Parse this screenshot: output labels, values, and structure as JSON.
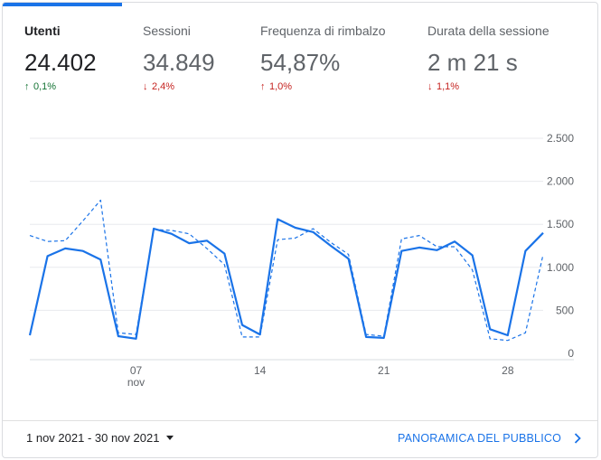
{
  "metrics": [
    {
      "label": "Utenti",
      "value": "24.402",
      "delta": "0,1%",
      "direction": "up",
      "tone": "good",
      "active": true
    },
    {
      "label": "Sessioni",
      "value": "34.849",
      "delta": "2,4%",
      "direction": "down",
      "tone": "bad",
      "active": false
    },
    {
      "label": "Frequenza di rimbalzo",
      "value": "54,87%",
      "delta": "1,0%",
      "direction": "up",
      "tone": "bad",
      "active": false
    },
    {
      "label": "Durata della sessione",
      "value": "2 m 21 s",
      "delta": "1,1%",
      "direction": "down",
      "tone": "bad",
      "active": false
    }
  ],
  "colors": {
    "accent": "#1a73e8",
    "good": "#137333",
    "bad": "#c5221f"
  },
  "icons": {
    "up": "arrow-up-icon",
    "down": "arrow-down-icon",
    "caret": "caret-down-icon",
    "chevron": "chevron-right-icon"
  },
  "footer": {
    "date_range": "1 nov 2021 - 30 nov 2021",
    "link_label": "PANORAMICA DEL PUBBLICO"
  },
  "chart_data": {
    "type": "line",
    "x": [
      1,
      2,
      3,
      4,
      5,
      6,
      7,
      8,
      9,
      10,
      11,
      12,
      13,
      14,
      15,
      16,
      17,
      18,
      19,
      20,
      21,
      22,
      23,
      24,
      25,
      26,
      27,
      28,
      29,
      30
    ],
    "ylim": [
      0,
      2500
    ],
    "y_ticks": [
      {
        "value": 2500,
        "label": "2.500"
      },
      {
        "value": 2000,
        "label": "2.000"
      },
      {
        "value": 1500,
        "label": "1.500"
      },
      {
        "value": 1000,
        "label": "1.000"
      },
      {
        "value": 500,
        "label": "500"
      },
      {
        "value": 0,
        "label": "0"
      }
    ],
    "x_ticks": [
      {
        "x": 7,
        "label": "07",
        "sublabel": "nov"
      },
      {
        "x": 14,
        "label": "14",
        "sublabel": ""
      },
      {
        "x": 21,
        "label": "21",
        "sublabel": ""
      },
      {
        "x": 28,
        "label": "28",
        "sublabel": ""
      }
    ],
    "series": [
      {
        "style": "solid",
        "values": [
          210,
          1130,
          1220,
          1190,
          1090,
          200,
          170,
          1450,
          1390,
          1280,
          1310,
          1160,
          330,
          220,
          1560,
          1460,
          1410,
          1250,
          1100,
          190,
          180,
          1190,
          1230,
          1200,
          1300,
          1140,
          280,
          210,
          1190,
          1400
        ]
      },
      {
        "style": "dashed",
        "values": [
          1370,
          1300,
          1310,
          1540,
          1780,
          240,
          220,
          1440,
          1430,
          1390,
          1220,
          1030,
          190,
          190,
          1320,
          1340,
          1450,
          1290,
          1150,
          220,
          200,
          1330,
          1370,
          1240,
          1240,
          970,
          170,
          150,
          240,
          1150
        ]
      }
    ],
    "grid": true
  }
}
